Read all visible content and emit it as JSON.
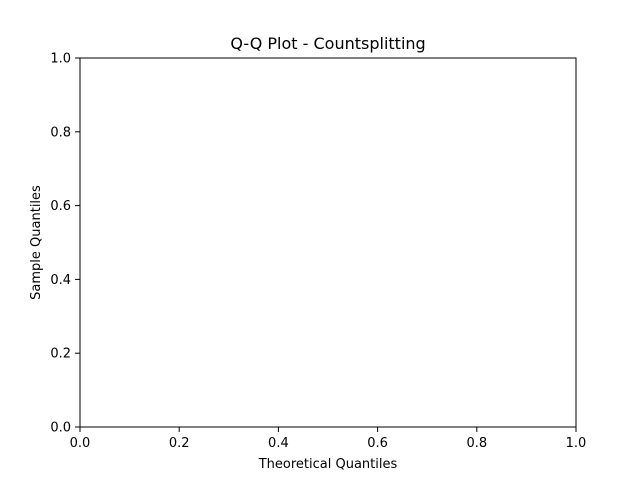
{
  "chart_data": {
    "type": "scatter",
    "title": "Q-Q Plot - Countsplitting",
    "xlabel": "Theoretical Quantiles",
    "ylabel": "Sample Quantiles",
    "xlim": [
      0.0,
      1.0
    ],
    "ylim": [
      0.0,
      1.0
    ],
    "x_ticks": [
      "0.0",
      "0.2",
      "0.4",
      "0.6",
      "0.8",
      "1.0"
    ],
    "y_ticks": [
      "0.0",
      "0.2",
      "0.4",
      "0.6",
      "0.8",
      "1.0"
    ],
    "grid": false,
    "series": []
  }
}
